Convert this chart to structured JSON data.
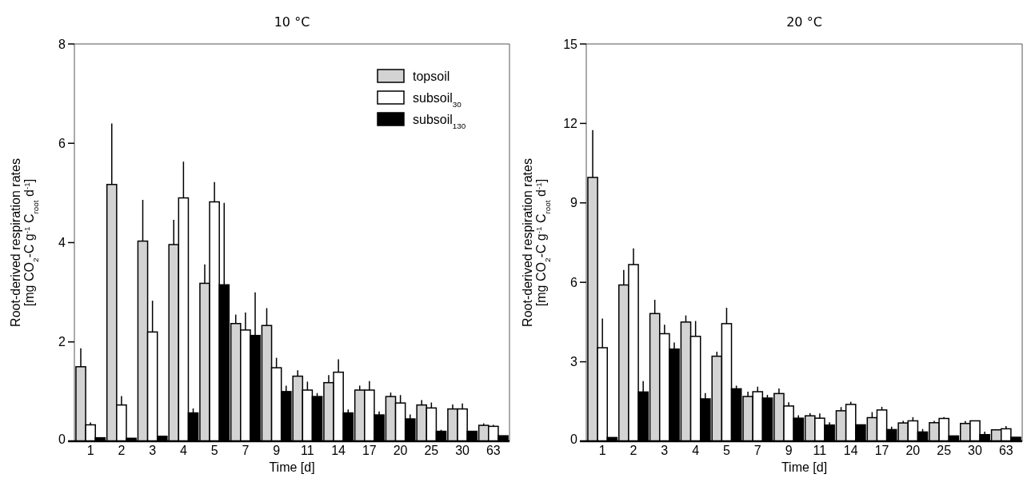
{
  "chart_data": [
    {
      "type": "bar",
      "title": "10 °C",
      "xlabel": "Time [d]",
      "ylabel": "Root-derived respiration rates\n[mg CO$_{2}$-C g$^{-1}$ C$_{root}$ d$^{-1}$]",
      "categories": [
        "1",
        "2",
        "3",
        "4",
        "5",
        "7",
        "9",
        "11",
        "14",
        "17",
        "20",
        "25",
        "30",
        "63"
      ],
      "ylim": [
        0,
        8
      ],
      "yticks": [
        0,
        2,
        4,
        6,
        8
      ],
      "grid": false,
      "legend": "top right",
      "series": [
        {
          "name": "topsoil",
          "color": "#d3d3d3",
          "values": [
            1.5,
            5.17,
            4.03,
            3.96,
            3.18,
            2.37,
            2.33,
            1.31,
            1.18,
            1.03,
            0.9,
            0.73,
            0.65,
            0.32
          ],
          "errors": [
            [
              1.5,
              1.87
            ],
            [
              5.17,
              6.4
            ],
            [
              4.03,
              4.86
            ],
            [
              3.96,
              4.46
            ],
            [
              3.18,
              3.56
            ],
            [
              2.37,
              2.55
            ],
            [
              2.33,
              2.68
            ],
            [
              1.31,
              1.43
            ],
            [
              1.18,
              1.33
            ],
            [
              1.03,
              1.12
            ],
            [
              0.9,
              0.98
            ],
            [
              0.73,
              0.83
            ],
            [
              0.65,
              0.74
            ],
            [
              0.32,
              0.36
            ]
          ]
        },
        {
          "name": "subsoil$_{30}$",
          "color": "#ffffff",
          "values": [
            0.33,
            0.73,
            2.2,
            4.9,
            4.82,
            2.24,
            1.48,
            1.03,
            1.39,
            1.03,
            0.77,
            0.67,
            0.65,
            0.3
          ],
          "errors": [
            [
              0.33,
              0.38
            ],
            [
              0.73,
              0.91
            ],
            [
              2.2,
              2.83
            ],
            [
              4.9,
              5.63
            ],
            [
              4.82,
              5.22
            ],
            [
              2.24,
              2.59
            ],
            [
              1.48,
              1.68
            ],
            [
              1.03,
              1.2
            ],
            [
              1.39,
              1.65
            ],
            [
              1.03,
              1.21
            ],
            [
              0.77,
              0.93
            ],
            [
              0.67,
              0.78
            ],
            [
              0.65,
              0.76
            ],
            [
              0.3,
              0.33
            ]
          ]
        },
        {
          "name": "subsoil$_{130}$",
          "color": "#000000",
          "values": [
            0.07,
            0.06,
            0.1,
            0.57,
            3.15,
            2.13,
            1.0,
            0.9,
            0.57,
            0.53,
            0.45,
            0.2,
            0.2,
            0.11
          ],
          "errors": [
            null,
            null,
            null,
            [
              0.57,
              0.66
            ],
            [
              3.15,
              4.8
            ],
            [
              2.13,
              3.0
            ],
            [
              1.0,
              1.12
            ],
            [
              0.9,
              0.97
            ],
            [
              0.57,
              0.64
            ],
            [
              0.53,
              0.6
            ],
            [
              0.45,
              0.54
            ],
            [
              0.2,
              0.23
            ],
            null,
            null
          ]
        }
      ]
    },
    {
      "type": "bar",
      "title": "20 °C",
      "xlabel": "Time [d]",
      "ylabel": "Root-derived respiration rates\n[mg CO$_{2}$-C g$^{-1}$ C$_{root}$ d$^{-1}$]",
      "categories": [
        "1",
        "2",
        "3",
        "4",
        "5",
        "7",
        "9",
        "11",
        "14",
        "17",
        "20",
        "25",
        "30",
        "63"
      ],
      "ylim": [
        0,
        15
      ],
      "yticks": [
        0,
        3,
        6,
        9,
        12,
        15
      ],
      "grid": false,
      "series": [
        {
          "color": "#d3d3d3",
          "values": [
            9.96,
            5.9,
            4.82,
            4.5,
            3.21,
            1.69,
            1.8,
            0.96,
            1.15,
            0.89,
            0.69,
            0.7,
            0.67,
            0.43
          ],
          "errors": [
            [
              9.96,
              11.75
            ],
            [
              5.9,
              6.47
            ],
            [
              4.82,
              5.34
            ],
            [
              4.5,
              4.75
            ],
            [
              3.21,
              3.38
            ],
            [
              1.69,
              1.87
            ],
            [
              1.8,
              1.99
            ],
            [
              0.96,
              1.06
            ],
            [
              1.15,
              1.29
            ],
            [
              0.89,
              1.1
            ],
            [
              0.69,
              0.77
            ],
            [
              0.7,
              0.77
            ],
            [
              0.67,
              0.76
            ],
            null
          ]
        },
        {
          "color": "#ffffff",
          "values": [
            3.53,
            6.67,
            4.06,
            3.96,
            4.44,
            1.87,
            1.33,
            0.87,
            1.39,
            1.18,
            0.77,
            0.86,
            0.77,
            0.47
          ],
          "errors": [
            [
              3.53,
              4.63
            ],
            [
              6.67,
              7.28
            ],
            [
              4.06,
              4.4
            ],
            [
              3.96,
              4.54
            ],
            [
              4.44,
              5.04
            ],
            [
              1.87,
              2.06
            ],
            [
              1.33,
              1.47
            ],
            [
              0.87,
              1.05
            ],
            [
              1.39,
              1.49
            ],
            [
              1.18,
              1.3
            ],
            [
              0.77,
              0.91
            ],
            [
              0.86,
              0.91
            ],
            null,
            [
              0.47,
              0.57
            ]
          ]
        },
        {
          "color": "#000000",
          "values": [
            0.14,
            1.86,
            3.48,
            1.6,
            1.98,
            1.63,
            0.87,
            0.61,
            0.62,
            0.44,
            0.35,
            0.2,
            0.25,
            0.15
          ],
          "errors": [
            null,
            [
              1.86,
              2.27
            ],
            [
              3.48,
              3.73
            ],
            [
              1.6,
              1.82
            ],
            [
              1.98,
              2.1
            ],
            [
              1.63,
              1.75
            ],
            [
              0.87,
              0.98
            ],
            [
              0.61,
              0.72
            ],
            null,
            [
              0.44,
              0.55
            ],
            [
              0.35,
              0.46
            ],
            null,
            [
              0.25,
              0.36
            ],
            null
          ]
        }
      ]
    }
  ]
}
